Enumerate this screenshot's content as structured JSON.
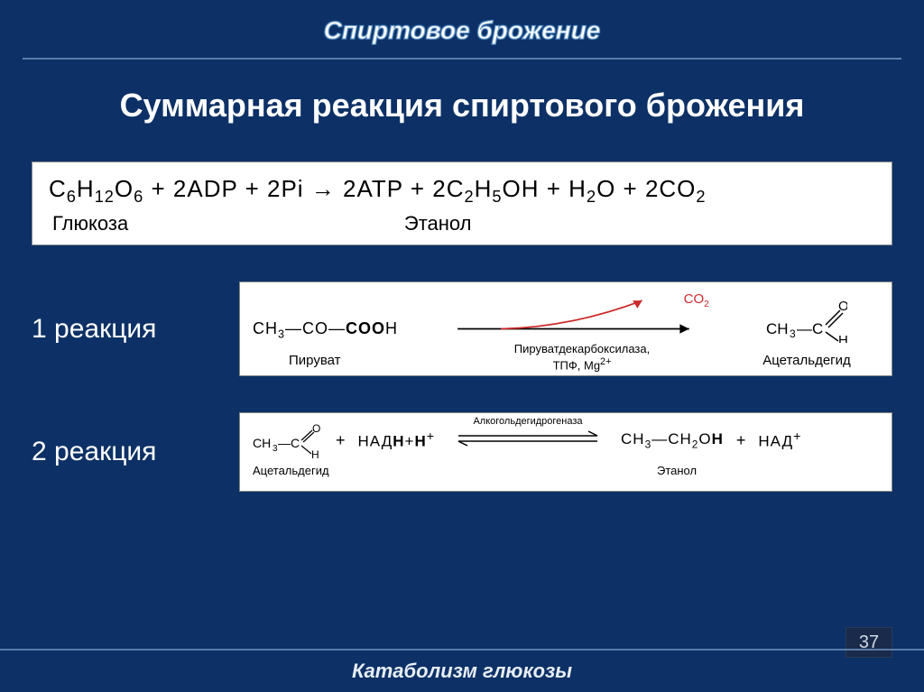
{
  "header": {
    "title": "Спиртовое брожение"
  },
  "subtitle": "Суммарная  реакция  спиртового брожения",
  "equation": {
    "formula_html": "C<sub>6</sub>H<sub>12</sub>O<sub>6</sub> + 2ADP + 2Pi &rarr; 2ATP + 2C<sub>2</sub>H<sub>5</sub>OH + H<sub>2</sub>O + 2CO<sub>2</sub>",
    "label_left": "Глюкоза",
    "label_right": "Этанол"
  },
  "reaction1": {
    "label": "1 реакция",
    "reactant_formula_html": "CH<sub>3</sub>&mdash;CO&mdash;<b>COO</b>H",
    "reactant_name": "Пируват",
    "leaving_html": "CO<sub>2</sub>",
    "enzyme_line1": "Пируватдекарбоксилаза,",
    "enzyme_line2_html": "ТПФ, Mg<sup>2+</sup>",
    "product_name": "Ацетальдегид",
    "arrow_color": "#000000",
    "curve_color": "#cc2a2a"
  },
  "reaction2": {
    "label": "2 реакция",
    "reactant1_name": "Ацетальдегид",
    "nadh_html": "НАД<b>Н</b>+<b>H</b><sup>+</sup>",
    "enzyme": "Алкогольдегидрогеназа",
    "product1_html": "CH<sub>3</sub>&mdash;CH<sub>2</sub>O<b>H</b>",
    "product1_name": "Этанол",
    "nad_html": "НАД<sup>+</sup>"
  },
  "footer": {
    "text": "Катаболизм  глюкозы",
    "page": "37"
  },
  "colors": {
    "bg": "#0d3166",
    "box_bg": "#ffffff",
    "divider": "#5a7da8"
  }
}
